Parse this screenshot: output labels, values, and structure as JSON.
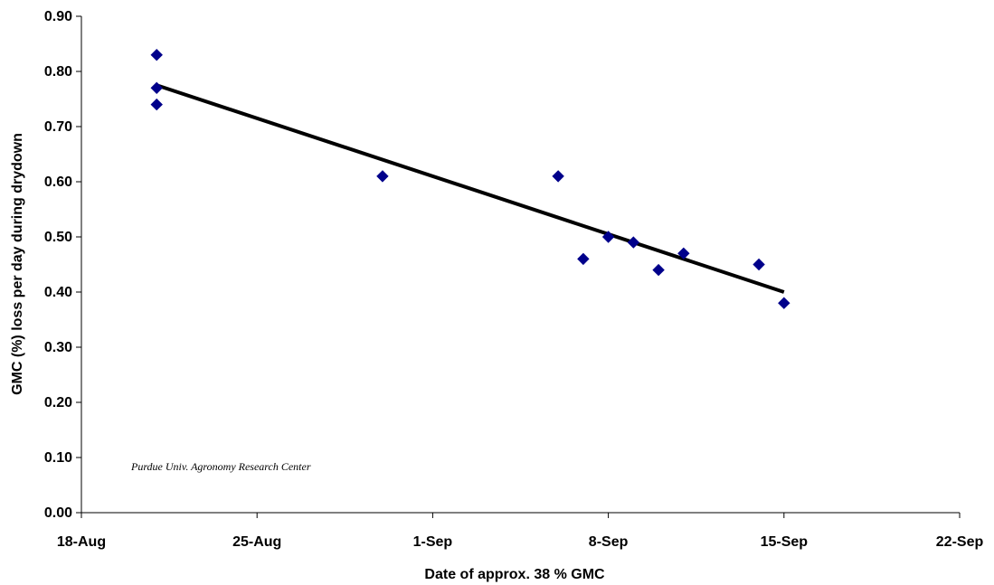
{
  "chart_data": {
    "type": "scatter",
    "xlabel": "Date of approx. 38 % GMC",
    "ylabel": "GMC (%) loss per day during drydown",
    "annotation": "Purdue Univ. Agronomy Research Center",
    "x_ticks": [
      "18-Aug",
      "25-Aug",
      "1-Sep",
      "8-Sep",
      "15-Sep",
      "22-Sep"
    ],
    "x_tick_dates": [
      "2000-08-18",
      "2000-08-25",
      "2000-09-01",
      "2000-09-08",
      "2000-09-15",
      "2000-09-22"
    ],
    "xlim": [
      "2000-08-18",
      "2000-09-22"
    ],
    "y_ticks": [
      "0.00",
      "0.10",
      "0.20",
      "0.30",
      "0.40",
      "0.50",
      "0.60",
      "0.70",
      "0.80",
      "0.90"
    ],
    "ylim": [
      0,
      0.9
    ],
    "grid": false,
    "legend": "none",
    "marker_color": "#00008B",
    "trendline_color": "#000000",
    "points": [
      {
        "x": "2000-08-21",
        "y": 0.83
      },
      {
        "x": "2000-08-21",
        "y": 0.77
      },
      {
        "x": "2000-08-21",
        "y": 0.74
      },
      {
        "x": "2000-08-30",
        "y": 0.61
      },
      {
        "x": "2000-09-06",
        "y": 0.61
      },
      {
        "x": "2000-09-07",
        "y": 0.46
      },
      {
        "x": "2000-09-08",
        "y": 0.5
      },
      {
        "x": "2000-09-09",
        "y": 0.49
      },
      {
        "x": "2000-09-10",
        "y": 0.44
      },
      {
        "x": "2000-09-11",
        "y": 0.47
      },
      {
        "x": "2000-09-14",
        "y": 0.45
      },
      {
        "x": "2000-09-15",
        "y": 0.38
      }
    ],
    "trendline": [
      {
        "x": "2000-08-21",
        "y": 0.775
      },
      {
        "x": "2000-09-15",
        "y": 0.4
      }
    ]
  }
}
